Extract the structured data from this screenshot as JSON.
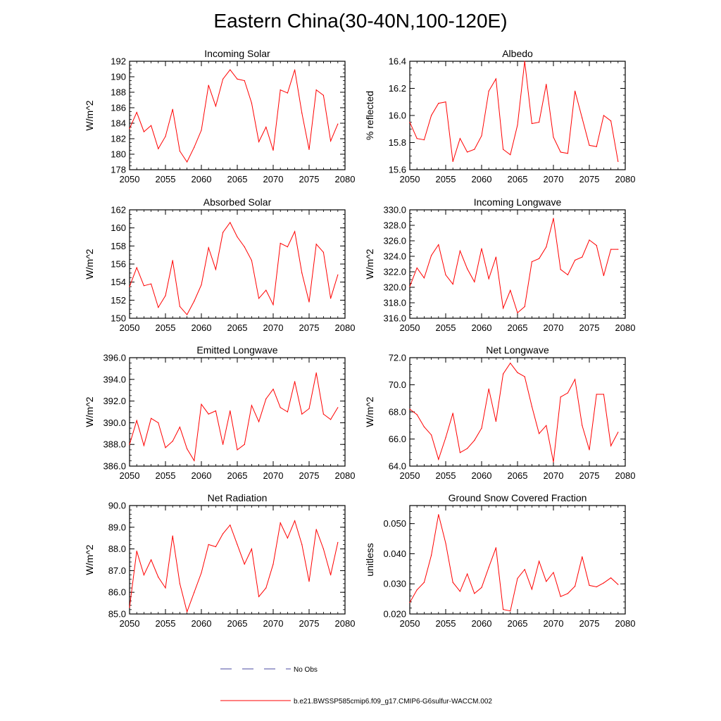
{
  "title": "Eastern China(30-40N,100-120E)",
  "legend": {
    "obs_label": "No Obs",
    "obs_color": "#4a4aa0",
    "model_label": "b.e21.BWSSP585cmip6.f09_g17.CMIP6-G6sulfur-WACCM.002",
    "model_color": "#ff0000"
  },
  "chart_data": [
    {
      "type": "line",
      "title": "Incoming Solar",
      "xlabel": "",
      "ylabel": "W/m^2",
      "xlim": [
        2050,
        2080
      ],
      "ylim": [
        178,
        192
      ],
      "xticks": [
        2050,
        2055,
        2060,
        2065,
        2070,
        2075,
        2080
      ],
      "yticks": [
        178,
        180,
        182,
        184,
        186,
        188,
        190,
        192
      ],
      "ytick_labels": [
        "178",
        "180",
        "182",
        "184",
        "186",
        "188",
        "190",
        "192"
      ],
      "color": "#ff0000",
      "x": [
        2050,
        2051,
        2052,
        2053,
        2054,
        2055,
        2056,
        2057,
        2058,
        2059,
        2060,
        2061,
        2062,
        2063,
        2064,
        2065,
        2066,
        2067,
        2068,
        2069,
        2070,
        2071,
        2072,
        2073,
        2074,
        2075,
        2076,
        2077,
        2078,
        2079
      ],
      "values": [
        183.3,
        185.4,
        182.9,
        183.7,
        180.7,
        182.3,
        185.8,
        180.4,
        179.0,
        180.9,
        183.1,
        188.9,
        186.2,
        189.7,
        190.9,
        189.7,
        189.5,
        186.6,
        181.6,
        183.5,
        180.5,
        188.3,
        187.9,
        190.9,
        185.3,
        180.6,
        188.3,
        187.6,
        181.7,
        183.9
      ]
    },
    {
      "type": "line",
      "title": "Albedo",
      "xlabel": "",
      "ylabel": "% reflected",
      "xlim": [
        2050,
        2080
      ],
      "ylim": [
        15.6,
        16.4
      ],
      "xticks": [
        2050,
        2055,
        2060,
        2065,
        2070,
        2075,
        2080
      ],
      "yticks": [
        15.6,
        15.8,
        16.0,
        16.2,
        16.4
      ],
      "ytick_labels": [
        "15.6",
        "15.8",
        "16.0",
        "16.2",
        "16.4"
      ],
      "color": "#ff0000",
      "x": [
        2050,
        2051,
        2052,
        2053,
        2054,
        2055,
        2056,
        2057,
        2058,
        2059,
        2060,
        2061,
        2062,
        2063,
        2064,
        2065,
        2066,
        2067,
        2068,
        2069,
        2070,
        2071,
        2072,
        2073,
        2074,
        2075,
        2076,
        2077,
        2078,
        2079
      ],
      "values": [
        15.95,
        15.83,
        15.82,
        16.0,
        16.09,
        16.1,
        15.66,
        15.83,
        15.73,
        15.75,
        15.85,
        16.18,
        16.27,
        15.75,
        15.71,
        15.93,
        16.4,
        15.94,
        15.95,
        16.23,
        15.84,
        15.73,
        15.72,
        16.18,
        15.98,
        15.78,
        15.77,
        16.0,
        15.96,
        15.66
      ]
    },
    {
      "type": "line",
      "title": "Absorbed Solar",
      "xlabel": "",
      "ylabel": "W/m^2",
      "xlim": [
        2050,
        2080
      ],
      "ylim": [
        150,
        162
      ],
      "xticks": [
        2050,
        2055,
        2060,
        2065,
        2070,
        2075,
        2080
      ],
      "yticks": [
        150,
        152,
        154,
        156,
        158,
        160,
        162
      ],
      "ytick_labels": [
        "150",
        "152",
        "154",
        "156",
        "158",
        "160",
        "162"
      ],
      "color": "#ff0000",
      "x": [
        2050,
        2051,
        2052,
        2053,
        2054,
        2055,
        2056,
        2057,
        2058,
        2059,
        2060,
        2061,
        2062,
        2063,
        2064,
        2065,
        2066,
        2067,
        2068,
        2069,
        2070,
        2071,
        2072,
        2073,
        2074,
        2075,
        2076,
        2077,
        2078,
        2079
      ],
      "values": [
        153.5,
        155.6,
        153.6,
        153.8,
        151.2,
        152.5,
        156.4,
        151.3,
        150.4,
        151.9,
        153.7,
        157.8,
        155.4,
        159.5,
        160.6,
        159.0,
        157.9,
        156.4,
        152.2,
        153.1,
        151.5,
        158.3,
        157.9,
        159.6,
        155.0,
        151.8,
        158.2,
        157.3,
        152.2,
        154.8
      ]
    },
    {
      "type": "line",
      "title": "Incoming Longwave",
      "xlabel": "",
      "ylabel": "W/m^2",
      "xlim": [
        2050,
        2080
      ],
      "ylim": [
        316,
        330
      ],
      "xticks": [
        2050,
        2055,
        2060,
        2065,
        2070,
        2075,
        2080
      ],
      "yticks": [
        316,
        318,
        320,
        322,
        324,
        326,
        328,
        330
      ],
      "ytick_labels": [
        "316.0",
        "318.0",
        "320.0",
        "322.0",
        "324.0",
        "326.0",
        "328.0",
        "330.0"
      ],
      "color": "#ff0000",
      "x": [
        2050,
        2051,
        2052,
        2053,
        2054,
        2055,
        2056,
        2057,
        2058,
        2059,
        2060,
        2061,
        2062,
        2063,
        2064,
        2065,
        2066,
        2067,
        2068,
        2069,
        2070,
        2071,
        2072,
        2073,
        2074,
        2075,
        2076,
        2077,
        2078,
        2079
      ],
      "values": [
        320.1,
        322.5,
        321.2,
        324.1,
        325.5,
        321.6,
        320.4,
        324.7,
        322.4,
        320.7,
        325.0,
        321.1,
        323.9,
        317.3,
        319.6,
        316.7,
        317.5,
        323.3,
        323.7,
        325.2,
        328.9,
        322.3,
        321.6,
        323.5,
        323.9,
        326.1,
        325.4,
        321.5,
        324.9,
        324.9
      ]
    },
    {
      "type": "line",
      "title": "Emitted Longwave",
      "xlabel": "",
      "ylabel": "W/m^2",
      "xlim": [
        2050,
        2080
      ],
      "ylim": [
        386,
        396
      ],
      "xticks": [
        2050,
        2055,
        2060,
        2065,
        2070,
        2075,
        2080
      ],
      "yticks": [
        386,
        388,
        390,
        392,
        394,
        396
      ],
      "ytick_labels": [
        "386.0",
        "388.0",
        "390.0",
        "392.0",
        "394.0",
        "396.0"
      ],
      "color": "#ff0000",
      "x": [
        2050,
        2051,
        2052,
        2053,
        2054,
        2055,
        2056,
        2057,
        2058,
        2059,
        2060,
        2061,
        2062,
        2063,
        2064,
        2065,
        2066,
        2067,
        2068,
        2069,
        2070,
        2071,
        2072,
        2073,
        2074,
        2075,
        2076,
        2077,
        2078,
        2079
      ],
      "values": [
        388.0,
        390.2,
        387.9,
        390.4,
        390.0,
        387.7,
        388.3,
        389.6,
        387.6,
        386.5,
        391.7,
        390.8,
        391.1,
        388.0,
        391.1,
        387.5,
        388.0,
        391.6,
        390.1,
        392.2,
        393.1,
        391.4,
        391.0,
        393.8,
        390.8,
        391.3,
        394.6,
        390.8,
        390.3,
        391.4
      ]
    },
    {
      "type": "line",
      "title": "Net Longwave",
      "xlabel": "",
      "ylabel": "W/m^2",
      "xlim": [
        2050,
        2080
      ],
      "ylim": [
        64,
        72
      ],
      "xticks": [
        2050,
        2055,
        2060,
        2065,
        2070,
        2075,
        2080
      ],
      "yticks": [
        64,
        66,
        68,
        70,
        72
      ],
      "ytick_labels": [
        "64.0",
        "66.0",
        "68.0",
        "70.0",
        "72.0"
      ],
      "color": "#ff0000",
      "x": [
        2050,
        2051,
        2052,
        2053,
        2054,
        2055,
        2056,
        2057,
        2058,
        2059,
        2060,
        2061,
        2062,
        2063,
        2064,
        2065,
        2066,
        2067,
        2068,
        2069,
        2070,
        2071,
        2072,
        2073,
        2074,
        2075,
        2076,
        2077,
        2078,
        2079
      ],
      "values": [
        68.2,
        67.8,
        66.9,
        66.3,
        64.5,
        66.1,
        67.9,
        65.0,
        65.3,
        65.9,
        66.8,
        69.7,
        67.3,
        70.8,
        71.6,
        70.9,
        70.6,
        68.4,
        66.4,
        67.0,
        64.3,
        69.1,
        69.4,
        70.4,
        67.0,
        65.2,
        69.3,
        69.3,
        65.5,
        66.5
      ]
    },
    {
      "type": "line",
      "title": "Net Radiation",
      "xlabel": "",
      "ylabel": "W/m^2",
      "xlim": [
        2050,
        2080
      ],
      "ylim": [
        85,
        90
      ],
      "xticks": [
        2050,
        2055,
        2060,
        2065,
        2070,
        2075,
        2080
      ],
      "yticks": [
        85,
        86,
        87,
        88,
        89,
        90
      ],
      "ytick_labels": [
        "85.0",
        "86.0",
        "87.0",
        "88.0",
        "89.0",
        "90.0"
      ],
      "color": "#ff0000",
      "x": [
        2050,
        2051,
        2052,
        2053,
        2054,
        2055,
        2056,
        2057,
        2058,
        2059,
        2060,
        2061,
        2062,
        2063,
        2064,
        2065,
        2066,
        2067,
        2068,
        2069,
        2070,
        2071,
        2072,
        2073,
        2074,
        2075,
        2076,
        2077,
        2078,
        2079
      ],
      "values": [
        85.3,
        87.9,
        86.8,
        87.5,
        86.7,
        86.2,
        88.6,
        86.4,
        85.1,
        86.0,
        86.9,
        88.2,
        88.1,
        88.7,
        89.1,
        88.2,
        87.3,
        88.0,
        85.8,
        86.2,
        87.3,
        89.2,
        88.5,
        89.3,
        88.2,
        86.5,
        88.9,
        88.0,
        86.8,
        88.3
      ]
    },
    {
      "type": "line",
      "title": "Ground Snow Covered Fraction",
      "xlabel": "",
      "ylabel": "unitless",
      "xlim": [
        2050,
        2080
      ],
      "ylim": [
        0.02,
        0.056
      ],
      "xticks": [
        2050,
        2055,
        2060,
        2065,
        2070,
        2075,
        2080
      ],
      "yticks": [
        0.02,
        0.03,
        0.04,
        0.05
      ],
      "ytick_labels": [
        "0.020",
        "0.030",
        "0.040",
        "0.050"
      ],
      "color": "#ff0000",
      "x": [
        2050,
        2051,
        2052,
        2053,
        2054,
        2055,
        2056,
        2057,
        2058,
        2059,
        2060,
        2061,
        2062,
        2063,
        2064,
        2065,
        2066,
        2067,
        2068,
        2069,
        2070,
        2071,
        2072,
        2073,
        2074,
        2075,
        2076,
        2077,
        2078,
        2079
      ],
      "values": [
        0.0238,
        0.028,
        0.0305,
        0.0395,
        0.053,
        0.0435,
        0.0305,
        0.0275,
        0.0333,
        0.0268,
        0.0288,
        0.0355,
        0.042,
        0.0215,
        0.021,
        0.0318,
        0.0348,
        0.0282,
        0.0375,
        0.0308,
        0.0338,
        0.0258,
        0.0268,
        0.0292,
        0.039,
        0.0295,
        0.029,
        0.0303,
        0.032,
        0.0298
      ]
    }
  ]
}
